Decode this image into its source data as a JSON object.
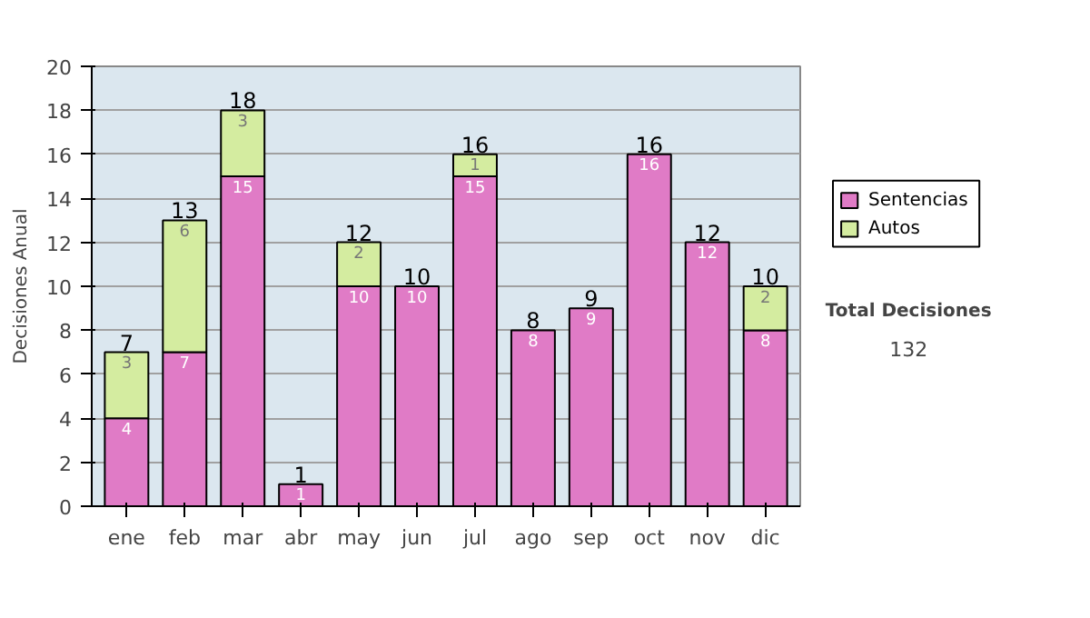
{
  "chart_data": {
    "type": "bar",
    "stacked": true,
    "ylabel": "Decisiones Anual",
    "categories": [
      "ene",
      "feb",
      "mar",
      "abr",
      "may",
      "jun",
      "jul",
      "ago",
      "sep",
      "oct",
      "nov",
      "dic"
    ],
    "series": [
      {
        "name": "Sentencias",
        "color": "#e07bc6",
        "values": [
          4,
          7,
          15,
          1,
          10,
          10,
          15,
          8,
          9,
          16,
          12,
          8
        ],
        "value_labels": [
          "4",
          "7",
          "15",
          "1",
          "10",
          "10",
          "15",
          "8",
          "9",
          "16",
          "12",
          "8"
        ]
      },
      {
        "name": "Autos",
        "color": "#d4eca0",
        "values": [
          3,
          6,
          3,
          0,
          2,
          0,
          1,
          0,
          0,
          0,
          0,
          2
        ],
        "value_labels": [
          "3",
          "6",
          "3",
          null,
          "2",
          null,
          "1",
          null,
          null,
          null,
          null,
          "2"
        ]
      }
    ],
    "totals": [
      "7",
      "13",
      "18",
      "1",
      "12",
      "10",
      "16",
      "8",
      "9",
      "16",
      "12",
      "10"
    ],
    "ylim": [
      0,
      20
    ],
    "yticks": [
      0,
      2,
      4,
      6,
      8,
      10,
      12,
      14,
      16,
      18,
      20
    ],
    "grid": "y",
    "legend": "right",
    "annotations": [
      "Total Decisiones",
      "132"
    ]
  }
}
